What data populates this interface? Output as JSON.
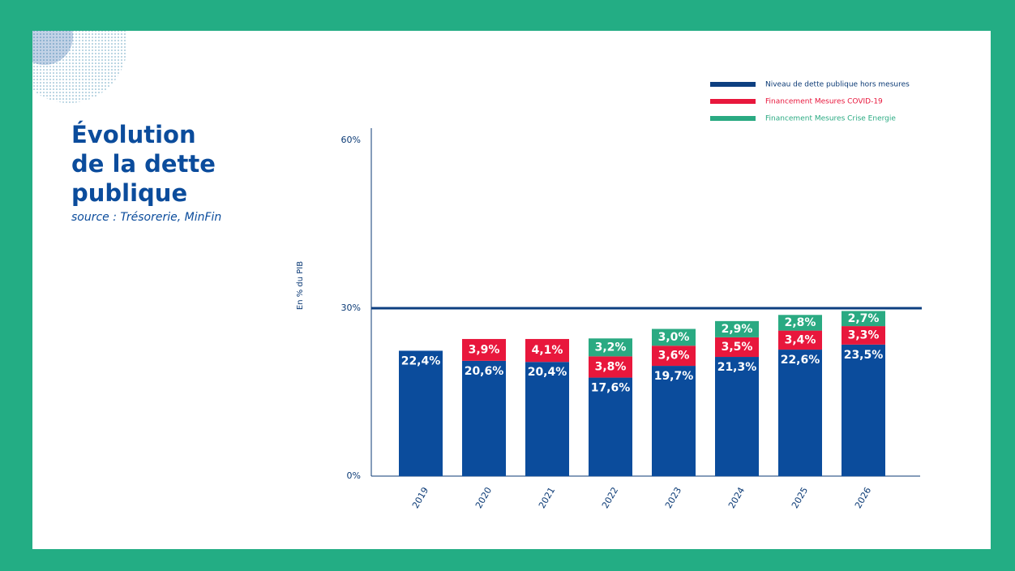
{
  "chart_data": {
    "type": "stacked_bar",
    "title": "Évolution de la dette publique",
    "subtitle": "source : Trésorerie, MinFin",
    "y_label": "En % du PIB",
    "categories": [
      "2019",
      "2020",
      "2021",
      "2022",
      "2023",
      "2024",
      "2025",
      "2026"
    ],
    "series": [
      {
        "name": "Niveau de dette publique hors mesures",
        "color": "#0b4c9c",
        "values": [
          22.4,
          20.6,
          20.4,
          17.6,
          19.7,
          21.3,
          22.6,
          23.5
        ],
        "value_labels": [
          "22,4%",
          "20,6%",
          "20,4%",
          "17,6%",
          "19,7%",
          "21,3%",
          "22,6%",
          "23,5%"
        ]
      },
      {
        "name": "Financement Mesures COVID-19",
        "color": "#e8173c",
        "values": [
          null,
          3.9,
          4.1,
          3.8,
          3.6,
          3.5,
          3.4,
          3.3
        ],
        "value_labels": [
          null,
          "3,9%",
          "4,1%",
          "3,8%",
          "3,6%",
          "3,5%",
          "3,4%",
          "3,3%"
        ]
      },
      {
        "name": "Financement Mesures Crise Energie",
        "color": "#2aaa82",
        "values": [
          null,
          null,
          null,
          3.2,
          3.0,
          2.9,
          2.8,
          2.7
        ],
        "value_labels": [
          null,
          null,
          null,
          "3,2%",
          "3,0%",
          "2,9%",
          "2,8%",
          "2,7%"
        ]
      }
    ],
    "reference_line": 30,
    "ylim": [
      0,
      60
    ],
    "yticks": [
      {
        "value": 0,
        "label": "0%"
      },
      {
        "value": 30,
        "label": "30%"
      },
      {
        "value": 60,
        "label": "60%"
      }
    ]
  }
}
